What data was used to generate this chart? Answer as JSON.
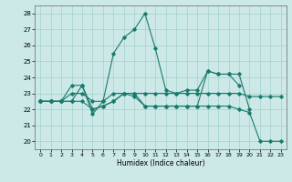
{
  "xlabel": "Humidex (Indice chaleur)",
  "xlim": [
    -0.5,
    23.5
  ],
  "ylim": [
    19.5,
    28.5
  ],
  "yticks": [
    20,
    21,
    22,
    23,
    24,
    25,
    26,
    27,
    28
  ],
  "xticks": [
    0,
    1,
    2,
    3,
    4,
    5,
    6,
    7,
    8,
    9,
    10,
    11,
    12,
    13,
    14,
    15,
    16,
    17,
    18,
    19,
    20,
    21,
    22,
    23
  ],
  "background_color": "#cce9e7",
  "grid_color": "#aad4d0",
  "line_color": "#1a7a6e",
  "lines": [
    {
      "x": [
        0,
        1,
        2,
        3,
        4,
        5,
        6,
        7,
        8,
        9,
        10,
        11,
        12,
        13,
        14,
        15,
        16,
        17,
        18,
        19
      ],
      "y": [
        22.5,
        22.5,
        22.5,
        23.5,
        23.5,
        21.7,
        22.5,
        25.5,
        26.5,
        27.0,
        28.0,
        25.8,
        23.2,
        23.0,
        23.2,
        23.2,
        24.4,
        24.2,
        24.2,
        23.5
      ]
    },
    {
      "x": [
        0,
        1,
        2,
        3,
        4,
        5,
        6,
        7,
        8,
        9,
        10,
        11,
        12,
        13,
        14,
        15,
        16,
        17,
        18,
        19,
        20,
        21,
        22,
        23
      ],
      "y": [
        22.5,
        22.5,
        22.5,
        22.5,
        22.5,
        22.0,
        22.2,
        22.5,
        23.0,
        23.0,
        22.2,
        22.2,
        22.2,
        22.2,
        22.2,
        22.2,
        22.2,
        22.2,
        22.2,
        22.0,
        21.8,
        20.0,
        20.0,
        20.0
      ]
    },
    {
      "x": [
        0,
        1,
        2,
        3,
        4,
        5,
        6,
        7,
        8,
        9,
        10,
        11,
        12,
        13,
        14,
        15,
        16,
        17,
        18,
        19,
        20,
        21,
        22,
        23
      ],
      "y": [
        22.5,
        22.5,
        22.5,
        23.0,
        23.0,
        22.5,
        22.5,
        23.0,
        23.0,
        23.0,
        23.0,
        23.0,
        23.0,
        23.0,
        23.0,
        23.0,
        23.0,
        23.0,
        23.0,
        23.0,
        22.8,
        22.8,
        22.8,
        22.8
      ]
    },
    {
      "x": [
        0,
        1,
        2,
        3,
        4,
        5,
        6,
        7,
        8,
        9,
        10,
        11,
        12,
        13,
        14,
        15,
        16,
        17,
        18,
        19,
        20
      ],
      "y": [
        22.5,
        22.5,
        22.5,
        22.5,
        23.5,
        22.0,
        22.2,
        22.5,
        23.0,
        22.8,
        22.2,
        22.2,
        22.2,
        22.2,
        22.2,
        22.2,
        24.4,
        24.2,
        24.2,
        24.2,
        22.0
      ]
    }
  ]
}
